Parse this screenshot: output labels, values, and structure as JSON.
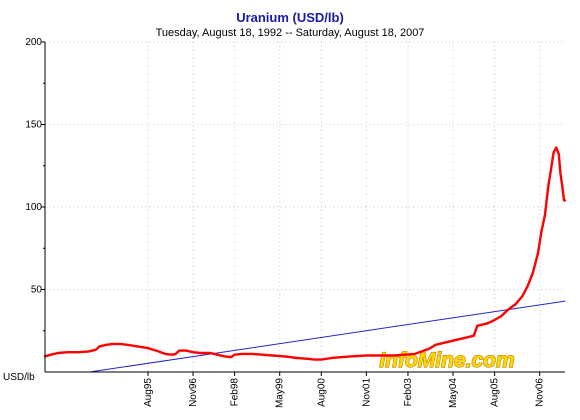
{
  "colors": {
    "background": "#ffffff",
    "title": "#1a1aa8",
    "subtitle": "#000000",
    "axis": "#000000",
    "grid": "#c8c8c8",
    "price_line": "#ff0000",
    "trend_line": "#2525c8",
    "watermark_fill": "#ffd800",
    "watermark_stroke": "#c08000"
  },
  "watermark": "InfoMine.com",
  "chart_data": {
    "type": "line",
    "title": "Uranium (USD/lb)",
    "subtitle": "Tuesday, August 18, 1992  --  Saturday, August 18, 2007",
    "ylabel": "USD/lb",
    "xlim": [
      1992.63,
      2007.63
    ],
    "ylim": [
      0,
      200
    ],
    "y_ticks": [
      50,
      100,
      150,
      200
    ],
    "y_tick_labels": [
      "50",
      "100",
      "150",
      "200"
    ],
    "y_minor_ticks": [
      25,
      75,
      125,
      175
    ],
    "x_ticks": [
      1995.6,
      1996.9,
      1998.1,
      1999.4,
      2000.6,
      2001.9,
      2003.1,
      2004.4,
      2005.6,
      2006.9
    ],
    "x_tick_labels": [
      "Aug95",
      "Nov96",
      "Feb98",
      "May99",
      "Aug00",
      "Nov01",
      "Feb03",
      "May04",
      "Aug05",
      "Nov06"
    ],
    "grid": true,
    "legend": "none",
    "series": [
      {
        "color": "#ff0000",
        "points": [
          [
            1992.63,
            9.5
          ],
          [
            1992.8,
            10.5
          ],
          [
            1993.0,
            11.5
          ],
          [
            1993.3,
            12.0
          ],
          [
            1993.6,
            12.0
          ],
          [
            1993.9,
            12.5
          ],
          [
            1994.1,
            13.5
          ],
          [
            1994.2,
            15.5
          ],
          [
            1994.4,
            16.5
          ],
          [
            1994.6,
            17.0
          ],
          [
            1994.8,
            17.0
          ],
          [
            1995.0,
            16.5
          ],
          [
            1995.3,
            15.5
          ],
          [
            1995.6,
            14.5
          ],
          [
            1995.9,
            12.5
          ],
          [
            1996.1,
            11.0
          ],
          [
            1996.3,
            10.5
          ],
          [
            1996.4,
            11.0
          ],
          [
            1996.5,
            13.0
          ],
          [
            1996.7,
            13.0
          ],
          [
            1996.9,
            12.0
          ],
          [
            1997.1,
            11.5
          ],
          [
            1997.4,
            11.5
          ],
          [
            1997.6,
            10.5
          ],
          [
            1997.8,
            9.5
          ],
          [
            1998.0,
            9.0
          ],
          [
            1998.1,
            10.5
          ],
          [
            1998.3,
            11.0
          ],
          [
            1998.6,
            11.0
          ],
          [
            1998.9,
            10.5
          ],
          [
            1999.2,
            10.0
          ],
          [
            1999.5,
            9.5
          ],
          [
            1999.7,
            9.0
          ],
          [
            1999.9,
            8.5
          ],
          [
            2000.2,
            8.0
          ],
          [
            2000.4,
            7.5
          ],
          [
            2000.6,
            7.5
          ],
          [
            2000.9,
            8.5
          ],
          [
            2001.2,
            9.0
          ],
          [
            2001.5,
            9.5
          ],
          [
            2001.9,
            10.0
          ],
          [
            2002.3,
            10.0
          ],
          [
            2002.7,
            10.0
          ],
          [
            2003.0,
            10.5
          ],
          [
            2003.3,
            11.0
          ],
          [
            2003.5,
            12.5
          ],
          [
            2003.7,
            14.0
          ],
          [
            2003.9,
            16.5
          ],
          [
            2004.2,
            18.0
          ],
          [
            2004.5,
            19.5
          ],
          [
            2004.8,
            21.0
          ],
          [
            2005.0,
            22.0
          ],
          [
            2005.1,
            28.0
          ],
          [
            2005.4,
            29.5
          ],
          [
            2005.6,
            31.5
          ],
          [
            2005.8,
            34.0
          ],
          [
            2006.0,
            38.0
          ],
          [
            2006.2,
            41.0
          ],
          [
            2006.4,
            46.0
          ],
          [
            2006.55,
            52.0
          ],
          [
            2006.7,
            60.0
          ],
          [
            2006.85,
            72.0
          ],
          [
            2006.95,
            85.0
          ],
          [
            2007.05,
            95.0
          ],
          [
            2007.15,
            113.0
          ],
          [
            2007.22,
            122.0
          ],
          [
            2007.3,
            133.0
          ],
          [
            2007.38,
            136.0
          ],
          [
            2007.45,
            132.0
          ],
          [
            2007.5,
            120.0
          ],
          [
            2007.55,
            113.0
          ],
          [
            2007.6,
            104.0
          ],
          [
            2007.63,
            104.0
          ]
        ]
      },
      {
        "color": "#2525c8",
        "points": [
          [
            1993.92,
            0.0
          ],
          [
            2007.63,
            43.0
          ]
        ]
      }
    ]
  }
}
